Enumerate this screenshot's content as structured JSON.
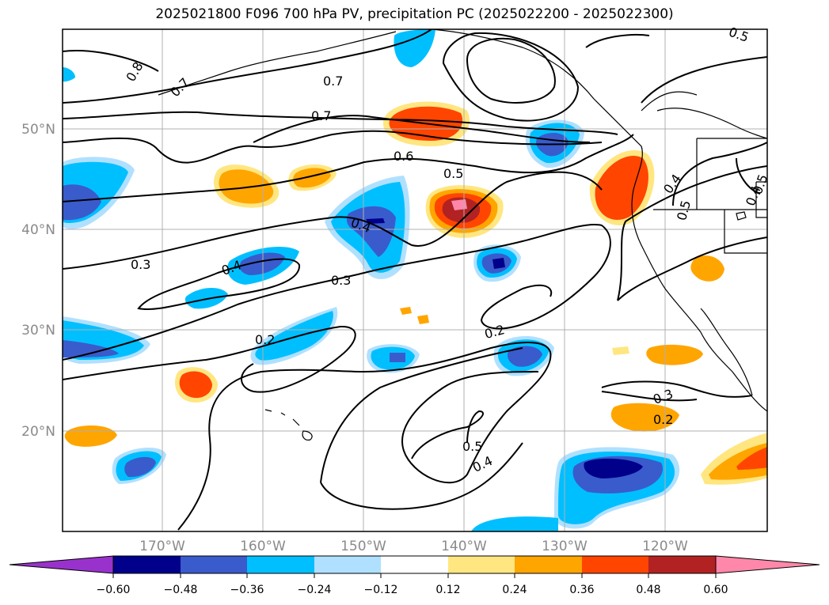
{
  "title": "2025021800 F096 700 hPa PV, precipitation PC (2025022200 - 2025022300)",
  "lat_labels": [
    "50°N",
    "40°N",
    "30°N",
    "20°N"
  ],
  "lon_labels": [
    "170°W",
    "160°W",
    "150°W",
    "140°W",
    "130°W",
    "120°W"
  ],
  "contour_labels": [
    "0.8",
    "0.7",
    "0.7",
    "0.7",
    "0.6",
    "0.5",
    "0.5",
    "0.4",
    "0.4",
    "0.4",
    "0.5",
    "0.3",
    "0.3",
    "0.2",
    "0.2",
    "0.2",
    "0.3",
    "0.5",
    "0.4",
    "0.4",
    "0.5"
  ],
  "colorbar": {
    "tick_labels": [
      "−0.60",
      "−0.48",
      "−0.36",
      "−0.24",
      "−0.12",
      "0.12",
      "0.24",
      "0.36",
      "0.48",
      "0.60"
    ],
    "colors": [
      "#9932cc",
      "#00008b",
      "#3a5bcc",
      "#00bfff",
      "#b0e0ff",
      "#ffffff",
      "#ffe680",
      "#ffa500",
      "#ff4500",
      "#b22222",
      "#ff88aa"
    ]
  },
  "shading_colors": {
    "neg_light": "#b0e0ff",
    "neg_mid": "#00bfff",
    "neg_strong": "#3a5bcc",
    "neg_max": "#00008b",
    "pos_light": "#ffe680",
    "pos_mid": "#ffa500",
    "pos_strong": "#ff4500",
    "pos_dark": "#b22222",
    "pos_max": "#ff88aa"
  }
}
